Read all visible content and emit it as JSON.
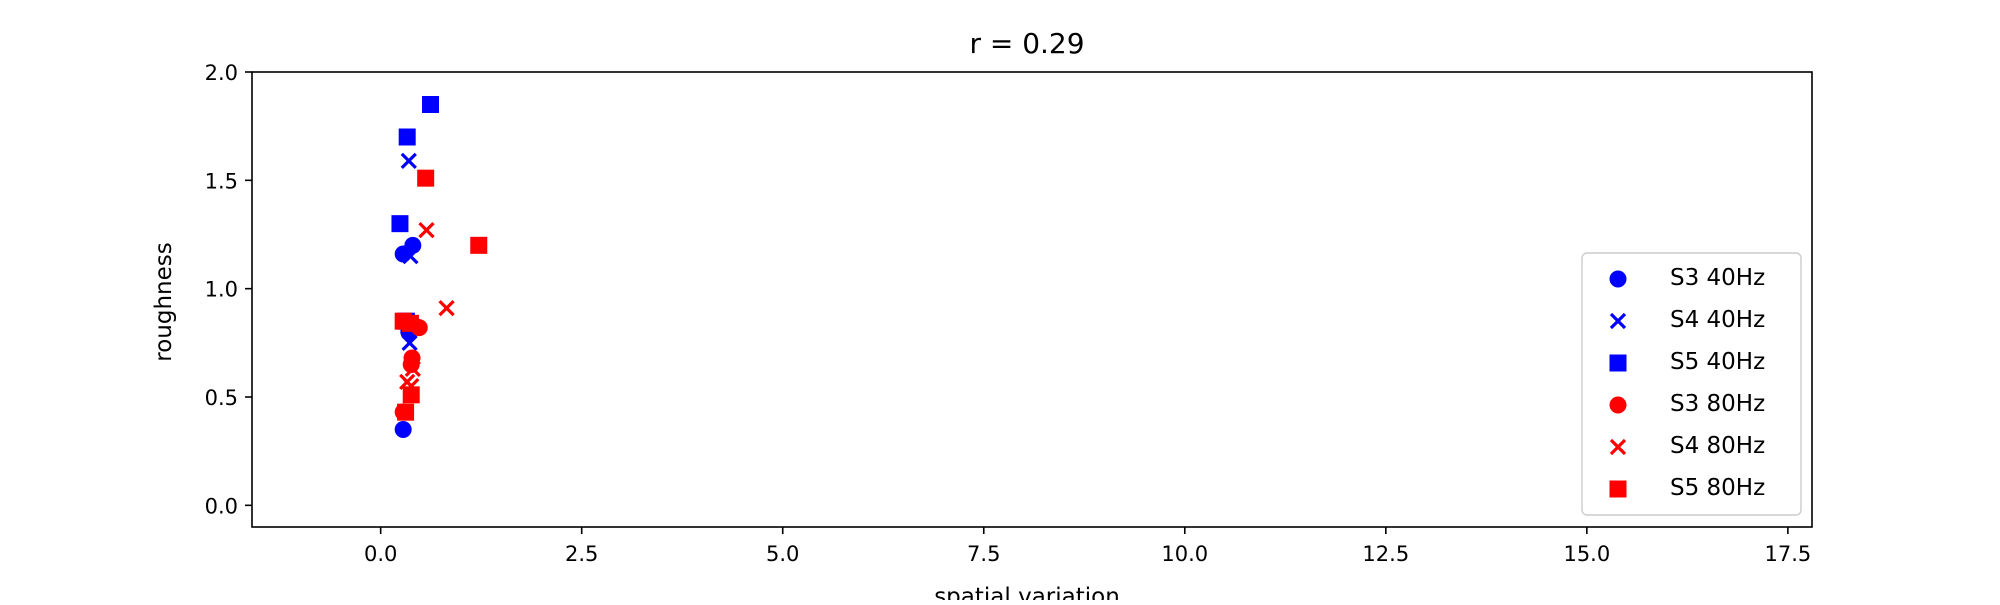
{
  "chart_data": {
    "type": "scatter",
    "title": "r = 0.29",
    "xlabel": "spatial variation",
    "ylabel": "roughness",
    "xlim": [
      -1.6,
      17.8
    ],
    "ylim": [
      -0.1,
      2.0
    ],
    "xticks": [
      0.0,
      2.5,
      5.0,
      7.5,
      10.0,
      12.5,
      15.0,
      17.5
    ],
    "xtick_labels": [
      "0.0",
      "2.5",
      "5.0",
      "7.5",
      "10.0",
      "12.5",
      "15.0",
      "17.5"
    ],
    "yticks": [
      0.0,
      0.5,
      1.0,
      1.5,
      2.0
    ],
    "ytick_labels": [
      "0.0",
      "0.5",
      "1.0",
      "1.5",
      "2.0"
    ],
    "grid": false,
    "legend_position": "lower-right",
    "series": [
      {
        "name": "S3 40Hz",
        "color": "#0000ff",
        "marker": "circle",
        "points": [
          [
            0.28,
            0.35
          ],
          [
            0.28,
            1.16
          ],
          [
            0.4,
            1.2
          ],
          [
            0.35,
            0.8
          ],
          [
            0.38,
            0.84
          ]
        ]
      },
      {
        "name": "S4 40Hz",
        "color": "#0000ff",
        "marker": "x",
        "points": [
          [
            0.35,
            1.59
          ],
          [
            0.37,
            1.15
          ],
          [
            0.36,
            0.75
          ],
          [
            0.39,
            0.83
          ]
        ]
      },
      {
        "name": "S5 40Hz",
        "color": "#0000ff",
        "marker": "square",
        "points": [
          [
            0.62,
            1.85
          ],
          [
            0.33,
            1.7
          ],
          [
            0.24,
            1.3
          ],
          [
            0.32,
            0.85
          ]
        ]
      },
      {
        "name": "S3 80Hz",
        "color": "#ff0000",
        "marker": "circle",
        "points": [
          [
            0.28,
            0.43
          ],
          [
            0.38,
            0.65
          ],
          [
            0.39,
            0.68
          ],
          [
            0.48,
            0.82
          ]
        ]
      },
      {
        "name": "S4 80Hz",
        "color": "#ff0000",
        "marker": "x",
        "points": [
          [
            0.57,
            1.27
          ],
          [
            0.82,
            0.91
          ],
          [
            0.4,
            0.63
          ],
          [
            0.33,
            0.57
          ],
          [
            0.38,
            0.55
          ]
        ]
      },
      {
        "name": "S5 80Hz",
        "color": "#ff0000",
        "marker": "square",
        "points": [
          [
            0.56,
            1.51
          ],
          [
            1.22,
            1.2
          ],
          [
            0.28,
            0.85
          ],
          [
            0.37,
            0.84
          ],
          [
            0.38,
            0.51
          ],
          [
            0.31,
            0.43
          ]
        ]
      }
    ]
  }
}
